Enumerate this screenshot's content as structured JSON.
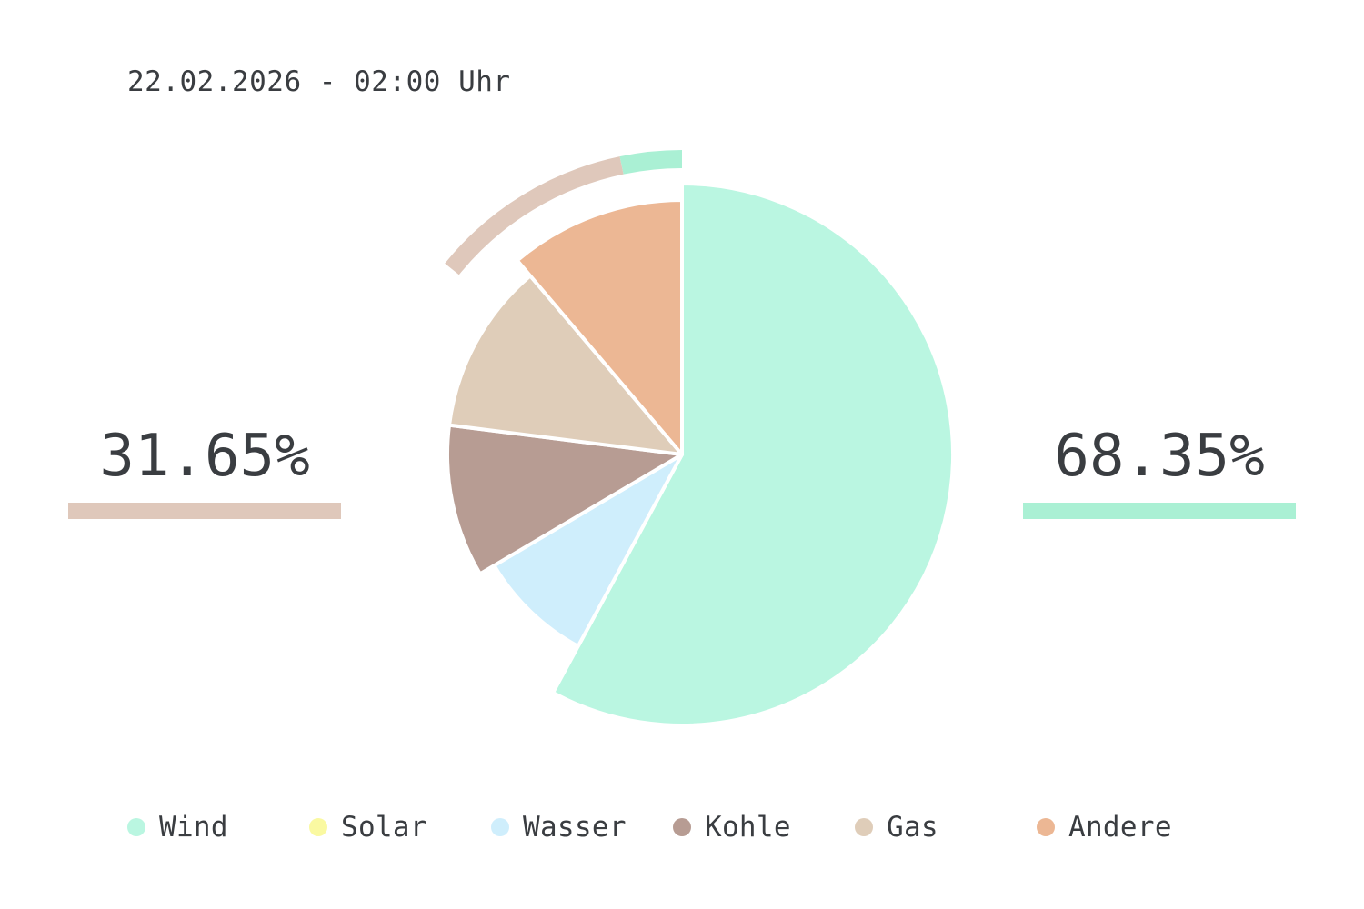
{
  "timestamp": "22.02.2026 - 02:00 Uhr",
  "summary": {
    "conventional": {
      "value": "31.65%",
      "fraction": 0.3165,
      "color": "#dfc8bb"
    },
    "renewable": {
      "value": "68.35%",
      "fraction": 0.6835,
      "color": "#aaf0d4"
    }
  },
  "chart_data": {
    "type": "pie",
    "categories": [
      "Wind",
      "Solar",
      "Wasser",
      "Kohle",
      "Gas",
      "Andere"
    ],
    "values": [
      57.9,
      0,
      8.6,
      10.5,
      11.8,
      11.2
    ],
    "colors": [
      "#baf6e1",
      "#faf9a1",
      "#cfeefc",
      "#b79c93",
      "#dfcdb9",
      "#ecb794"
    ],
    "outer_ring": {
      "renewable": {
        "fraction": 0.6835,
        "color": "#aaf0d4"
      },
      "conventional": {
        "fraction": 0.3165,
        "color": "#dfc8bb"
      }
    },
    "legend_position": "bottom"
  }
}
